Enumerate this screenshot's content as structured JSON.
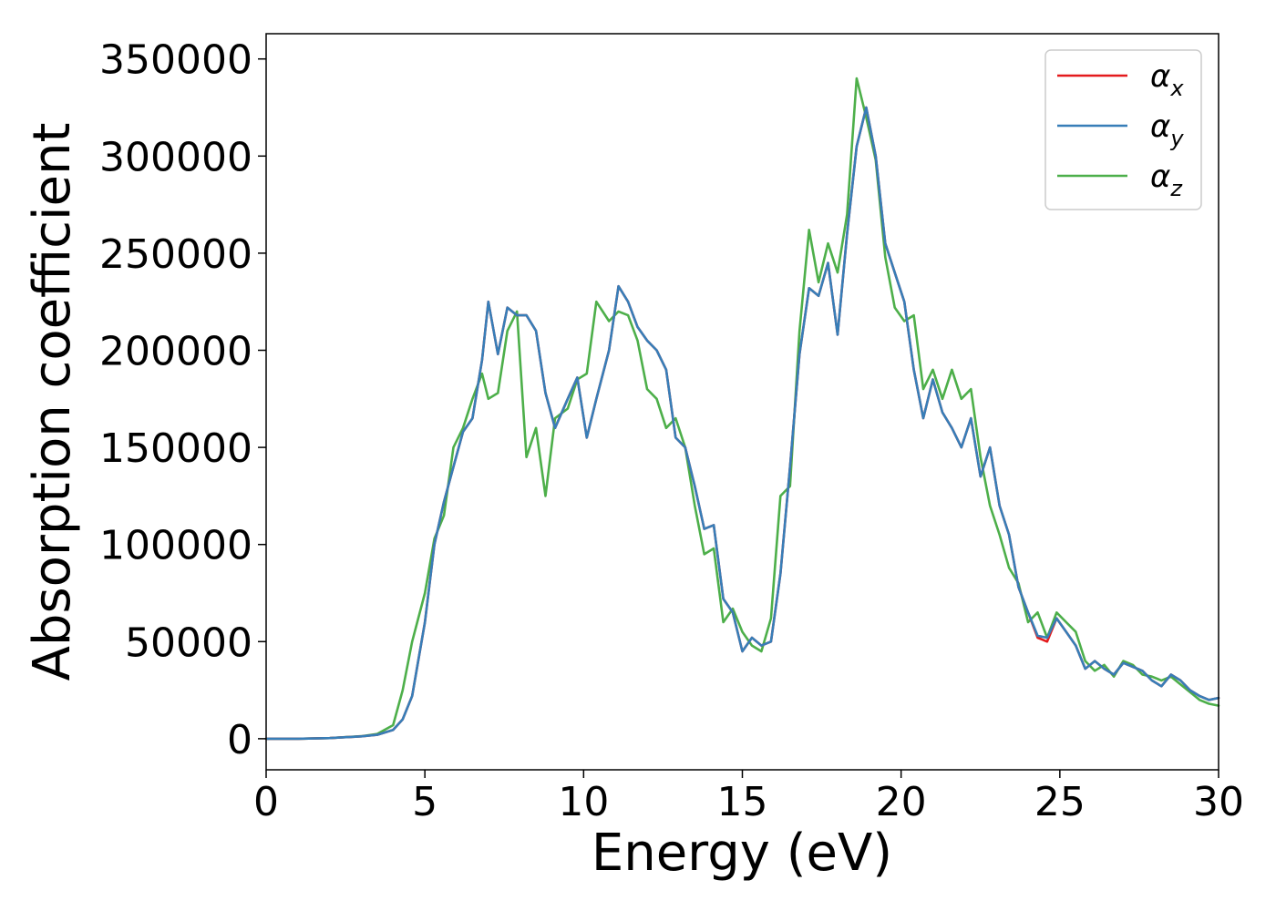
{
  "chart_data": {
    "type": "line",
    "title": "",
    "xlabel": "Energy (eV)",
    "ylabel": "Absorption coefficient",
    "xlim": [
      0,
      30
    ],
    "ylim": [
      -16000,
      363000
    ],
    "xticks": [
      0,
      5,
      10,
      15,
      20,
      25,
      30
    ],
    "xtick_labels": [
      "0",
      "5",
      "10",
      "15",
      "20",
      "25",
      "30"
    ],
    "yticks": [
      0,
      50000,
      100000,
      150000,
      200000,
      250000,
      300000,
      350000
    ],
    "ytick_labels": [
      "0",
      "50000",
      "100000",
      "150000",
      "200000",
      "250000",
      "300000",
      "350000"
    ],
    "grid": false,
    "legend_position": "top-right",
    "x": [
      0,
      1,
      2,
      3,
      3.5,
      4,
      4.3,
      4.6,
      5.0,
      5.3,
      5.6,
      5.9,
      6.2,
      6.5,
      6.8,
      7.0,
      7.3,
      7.6,
      7.9,
      8.2,
      8.5,
      8.8,
      9.1,
      9.5,
      9.8,
      10.1,
      10.4,
      10.8,
      11.1,
      11.4,
      11.7,
      12.0,
      12.3,
      12.6,
      12.9,
      13.2,
      13.5,
      13.8,
      14.1,
      14.4,
      14.7,
      15.0,
      15.3,
      15.6,
      15.9,
      16.2,
      16.5,
      16.8,
      17.1,
      17.4,
      17.7,
      18.0,
      18.3,
      18.6,
      18.9,
      19.2,
      19.5,
      19.8,
      20.1,
      20.4,
      20.7,
      21.0,
      21.3,
      21.6,
      21.9,
      22.2,
      22.5,
      22.8,
      23.1,
      23.4,
      23.7,
      24.0,
      24.3,
      24.6,
      24.9,
      25.2,
      25.5,
      25.8,
      26.1,
      26.4,
      26.7,
      27.0,
      27.3,
      27.6,
      27.9,
      28.2,
      28.5,
      28.8,
      29.1,
      29.4,
      29.7,
      30.0
    ],
    "series": [
      {
        "name": "α_x",
        "color": "#e41a1c",
        "values": [
          0,
          0,
          300,
          1200,
          2000,
          4500,
          10000,
          22000,
          60000,
          100000,
          122000,
          140000,
          158000,
          165000,
          195000,
          225000,
          198000,
          222000,
          218000,
          218000,
          210000,
          178000,
          160000,
          175000,
          186000,
          155000,
          175000,
          200000,
          233000,
          225000,
          212000,
          205000,
          200000,
          190000,
          155000,
          150000,
          130000,
          108000,
          110000,
          72000,
          65000,
          45000,
          52000,
          48000,
          50000,
          85000,
          140000,
          198000,
          232000,
          228000,
          245000,
          208000,
          260000,
          305000,
          325000,
          300000,
          255000,
          240000,
          225000,
          190000,
          165000,
          185000,
          168000,
          160000,
          150000,
          165000,
          135000,
          150000,
          120000,
          105000,
          78000,
          65000,
          52000,
          50000,
          62000,
          55000,
          48000,
          36000,
          40000,
          36000,
          33000,
          39000,
          37000,
          35000,
          30000,
          27000,
          33000,
          30000,
          25000,
          22000,
          20000,
          21000
        ]
      },
      {
        "name": "α_y",
        "color": "#377eb8",
        "values": [
          0,
          0,
          300,
          1200,
          2000,
          4500,
          10000,
          22000,
          60000,
          100000,
          122000,
          140000,
          158000,
          165000,
          195000,
          225000,
          198000,
          222000,
          218000,
          218000,
          210000,
          178000,
          160000,
          175000,
          186000,
          155000,
          175000,
          200000,
          233000,
          225000,
          212000,
          205000,
          200000,
          190000,
          155000,
          150000,
          130000,
          108000,
          110000,
          72000,
          65000,
          45000,
          52000,
          48000,
          50000,
          85000,
          140000,
          198000,
          232000,
          228000,
          245000,
          208000,
          260000,
          305000,
          325000,
          300000,
          255000,
          240000,
          225000,
          190000,
          165000,
          185000,
          168000,
          160000,
          150000,
          165000,
          135000,
          150000,
          120000,
          105000,
          78000,
          65000,
          53000,
          52000,
          62000,
          55000,
          48000,
          36000,
          40000,
          36000,
          33000,
          39000,
          37000,
          35000,
          30000,
          27000,
          33000,
          30000,
          25000,
          22000,
          20000,
          21000
        ]
      },
      {
        "name": "α_z",
        "color": "#4daf4a",
        "values": [
          0,
          0,
          300,
          1300,
          2500,
          7000,
          25000,
          50000,
          75000,
          103000,
          115000,
          150000,
          160000,
          175000,
          188000,
          175000,
          178000,
          210000,
          220000,
          145000,
          160000,
          125000,
          165000,
          170000,
          185000,
          188000,
          225000,
          215000,
          220000,
          218000,
          205000,
          180000,
          175000,
          160000,
          165000,
          150000,
          120000,
          95000,
          98000,
          60000,
          67000,
          55000,
          48000,
          45000,
          62000,
          125000,
          130000,
          210000,
          262000,
          235000,
          255000,
          240000,
          270000,
          340000,
          320000,
          298000,
          248000,
          222000,
          215000,
          218000,
          180000,
          190000,
          175000,
          190000,
          175000,
          180000,
          145000,
          120000,
          105000,
          88000,
          80000,
          60000,
          65000,
          52000,
          65000,
          60000,
          55000,
          40000,
          35000,
          38000,
          32000,
          40000,
          38000,
          33000,
          32000,
          30000,
          32000,
          28000,
          24000,
          20000,
          18000,
          17000
        ]
      }
    ],
    "legend": [
      {
        "base": "α",
        "sub": "x"
      },
      {
        "base": "α",
        "sub": "y"
      },
      {
        "base": "α",
        "sub": "z"
      }
    ]
  }
}
